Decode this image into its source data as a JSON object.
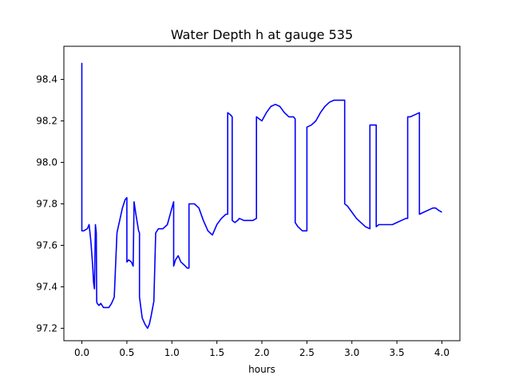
{
  "chart_data": {
    "type": "line",
    "title": "Water Depth h at gauge 535",
    "xlabel": "hours",
    "ylabel": "",
    "xlim": [
      -0.2,
      4.2
    ],
    "ylim": [
      97.14,
      98.56
    ],
    "xticks": [
      0.0,
      0.5,
      1.0,
      1.5,
      2.0,
      2.5,
      3.0,
      3.5,
      4.0
    ],
    "xtick_labels": [
      "0.0",
      "0.5",
      "1.0",
      "1.5",
      "2.0",
      "2.5",
      "3.0",
      "3.5",
      "4.0"
    ],
    "yticks": [
      97.2,
      97.4,
      97.6,
      97.8,
      98.0,
      98.2,
      98.4
    ],
    "ytick_labels": [
      "97.2",
      "97.4",
      "97.6",
      "97.8",
      "98.0",
      "98.2",
      "98.4"
    ],
    "grid": false,
    "series": [
      {
        "color": "#0000ff",
        "x": [
          0.0,
          0.0,
          0.0,
          0.02,
          0.06,
          0.08,
          0.1,
          0.12,
          0.13,
          0.14,
          0.15,
          0.16,
          0.165,
          0.17,
          0.19,
          0.21,
          0.24,
          0.27,
          0.3,
          0.33,
          0.36,
          0.39,
          0.4,
          0.42,
          0.45,
          0.48,
          0.5,
          0.5,
          0.52,
          0.55,
          0.57,
          0.58,
          0.58,
          0.6,
          0.63,
          0.64,
          0.64,
          0.67,
          0.7,
          0.73,
          0.75,
          0.77,
          0.8,
          0.82,
          0.85,
          0.9,
          0.95,
          1.0,
          1.02,
          1.02,
          1.04,
          1.07,
          1.1,
          1.15,
          1.17,
          1.19,
          1.19,
          1.25,
          1.3,
          1.35,
          1.4,
          1.45,
          1.5,
          1.55,
          1.6,
          1.62,
          1.62,
          1.65,
          1.67,
          1.67,
          1.7,
          1.73,
          1.75,
          1.8,
          1.85,
          1.9,
          1.94,
          1.94,
          1.97,
          2.0,
          2.05,
          2.1,
          2.15,
          2.2,
          2.25,
          2.3,
          2.35,
          2.37,
          2.37,
          2.4,
          2.45,
          2.5,
          2.5,
          2.55,
          2.6,
          2.65,
          2.7,
          2.75,
          2.8,
          2.85,
          2.92,
          2.92,
          2.95,
          3.0,
          3.05,
          3.1,
          3.15,
          3.2,
          3.2,
          3.22,
          3.25,
          3.27,
          3.27,
          3.3,
          3.35,
          3.4,
          3.45,
          3.5,
          3.55,
          3.6,
          3.62,
          3.62,
          3.65,
          3.7,
          3.75,
          3.75,
          3.8,
          3.85,
          3.9,
          3.93,
          3.96,
          4.0
        ],
        "values": [
          98.48,
          97.98,
          97.67,
          97.67,
          97.68,
          97.7,
          97.62,
          97.5,
          97.42,
          97.39,
          97.7,
          97.66,
          97.33,
          97.32,
          97.31,
          97.32,
          97.3,
          97.3,
          97.3,
          97.32,
          97.35,
          97.66,
          97.68,
          97.72,
          97.78,
          97.82,
          97.83,
          97.52,
          97.53,
          97.52,
          97.5,
          97.81,
          97.81,
          97.75,
          97.67,
          97.66,
          97.35,
          97.25,
          97.22,
          97.2,
          97.22,
          97.26,
          97.33,
          97.66,
          97.68,
          97.68,
          97.7,
          97.78,
          97.81,
          97.5,
          97.53,
          97.55,
          97.52,
          97.5,
          97.49,
          97.49,
          97.8,
          97.8,
          97.78,
          97.72,
          97.67,
          97.65,
          97.7,
          97.73,
          97.75,
          97.75,
          98.24,
          98.23,
          98.22,
          97.72,
          97.71,
          97.72,
          97.73,
          97.72,
          97.72,
          97.72,
          97.73,
          98.22,
          98.21,
          98.2,
          98.24,
          98.27,
          98.28,
          98.27,
          98.24,
          98.22,
          98.22,
          98.21,
          97.71,
          97.69,
          97.67,
          97.67,
          98.17,
          98.18,
          98.2,
          98.24,
          98.27,
          98.29,
          98.3,
          98.3,
          98.3,
          97.8,
          97.79,
          97.76,
          97.73,
          97.71,
          97.69,
          97.68,
          98.18,
          98.18,
          98.18,
          98.18,
          97.69,
          97.7,
          97.7,
          97.7,
          97.7,
          97.71,
          97.72,
          97.73,
          97.73,
          98.22,
          98.22,
          98.23,
          98.24,
          97.75,
          97.76,
          97.77,
          97.78,
          97.78,
          97.77,
          97.76
        ]
      }
    ]
  }
}
